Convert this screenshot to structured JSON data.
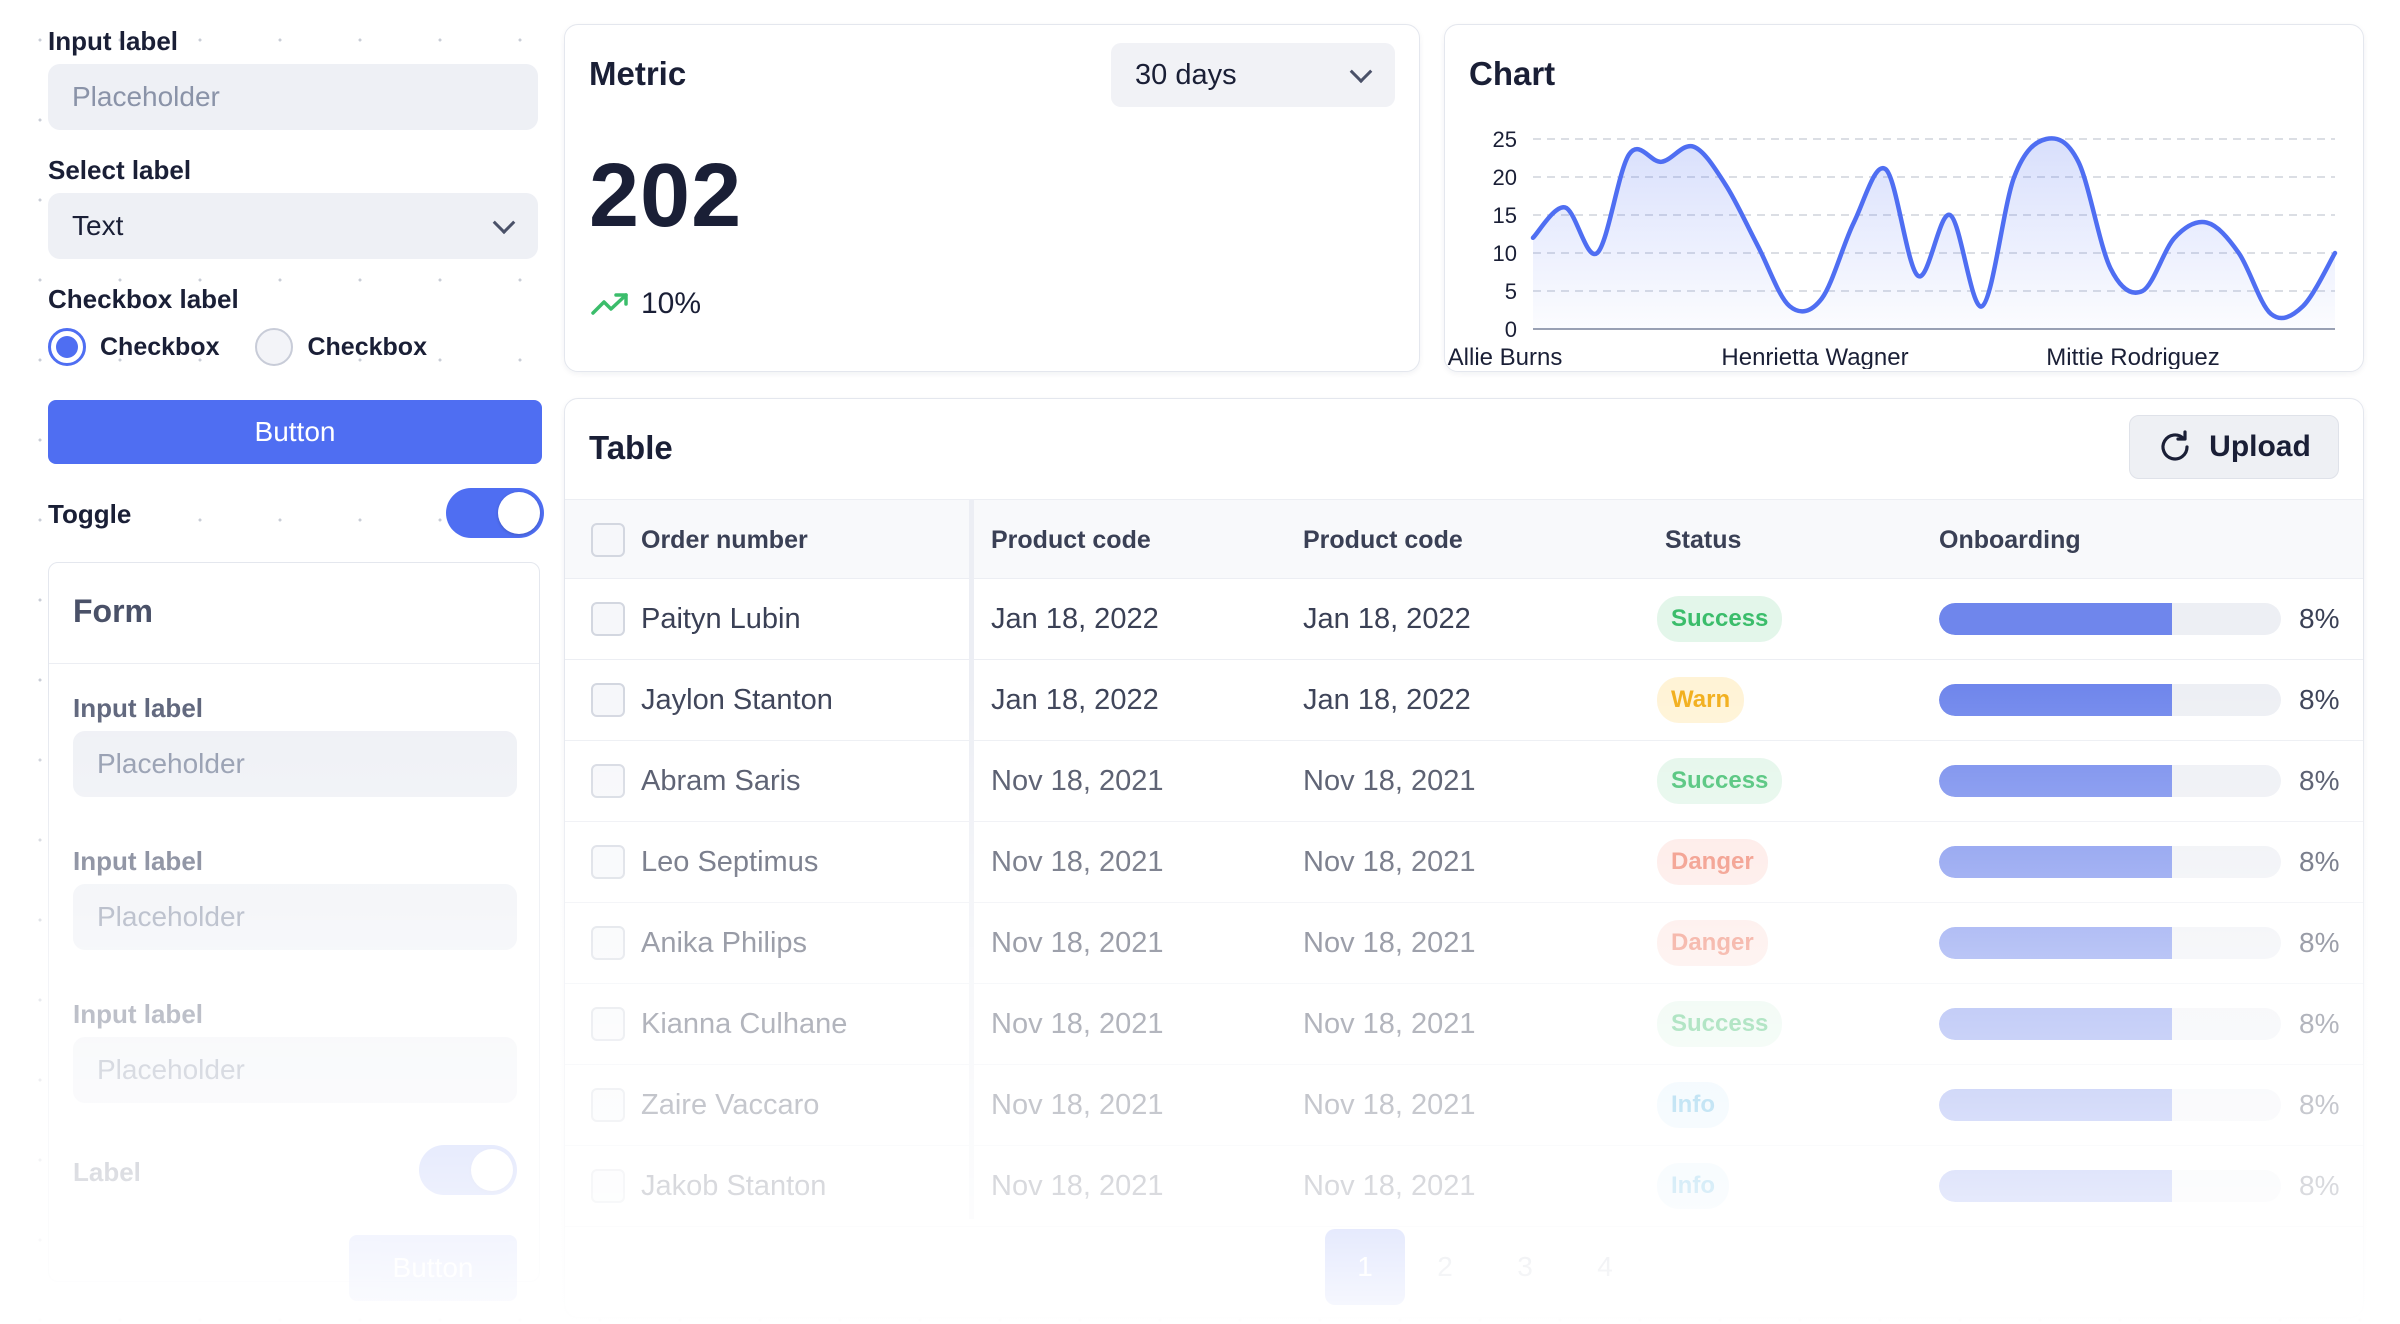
{
  "left": {
    "input_label": "Input label",
    "input_placeholder": "Placeholder",
    "select_label": "Select label",
    "select_value": "Text",
    "checkbox_label": "Checkbox label",
    "checkboxes": [
      {
        "label": "Checkbox",
        "checked": true
      },
      {
        "label": "Checkbox",
        "checked": false
      }
    ],
    "button_label": "Button",
    "toggle_label": "Toggle",
    "toggle_on": true
  },
  "form": {
    "title": "Form",
    "fields": [
      {
        "label": "Input label",
        "placeholder": "Placeholder"
      },
      {
        "label": "Input label",
        "placeholder": "Placeholder"
      },
      {
        "label": "Input label",
        "placeholder": "Placeholder"
      }
    ],
    "toggle_label": "Label",
    "toggle_on": true,
    "submit_label": "Button"
  },
  "metric": {
    "title": "Metric",
    "period": "30 days",
    "value": "202",
    "change": "10%",
    "trend_icon": "trending-up-icon",
    "trend_color": "#3bbd6b"
  },
  "chart_data": {
    "type": "area",
    "title": "Chart",
    "x_labels": [
      "Allie Burns",
      "Henrietta Wagner",
      "Mittie Rodriguez"
    ],
    "x": [
      0,
      0.04,
      0.08,
      0.12,
      0.16,
      0.2,
      0.24,
      0.28,
      0.32,
      0.36,
      0.4,
      0.44,
      0.48,
      0.52,
      0.56,
      0.6,
      0.64,
      0.68,
      0.72,
      0.76,
      0.8,
      0.84,
      0.88,
      0.92,
      0.96,
      1
    ],
    "values": [
      12,
      16,
      10,
      23,
      22,
      24,
      19,
      11,
      3,
      4,
      14,
      21,
      7,
      15,
      3,
      20,
      25,
      22,
      8,
      5,
      12,
      14,
      10,
      2,
      3,
      10
    ],
    "ylim": [
      0,
      25
    ],
    "yticks": [
      0,
      5,
      10,
      15,
      20,
      25
    ],
    "grid": true,
    "line_color": "#4f6ef2"
  },
  "table": {
    "title": "Table",
    "upload_label": "Upload",
    "columns": [
      "Order number",
      "Product code",
      "Product code",
      "Status",
      "Onboarding"
    ],
    "rows": [
      {
        "name": "Paityn Lubin",
        "code1": "Jan 18, 2022",
        "code2": "Jan 18, 2022",
        "status": "Success",
        "progress": 0.68,
        "pct": "8%"
      },
      {
        "name": "Jaylon Stanton",
        "code1": "Jan 18, 2022",
        "code2": "Jan 18, 2022",
        "status": "Warn",
        "progress": 0.68,
        "pct": "8%"
      },
      {
        "name": "Abram Saris",
        "code1": "Nov 18, 2021",
        "code2": "Nov 18, 2021",
        "status": "Success",
        "progress": 0.68,
        "pct": "8%"
      },
      {
        "name": "Leo Septimus",
        "code1": "Nov 18, 2021",
        "code2": "Nov 18, 2021",
        "status": "Danger",
        "progress": 0.68,
        "pct": "8%"
      },
      {
        "name": "Anika Philips",
        "code1": "Nov 18, 2021",
        "code2": "Nov 18, 2021",
        "status": "Danger",
        "progress": 0.68,
        "pct": "8%"
      },
      {
        "name": "Kianna Culhane",
        "code1": "Nov 18, 2021",
        "code2": "Nov 18, 2021",
        "status": "Success",
        "progress": 0.68,
        "pct": "8%"
      },
      {
        "name": "Zaire Vaccaro",
        "code1": "Nov 18, 2021",
        "code2": "Nov 18, 2021",
        "status": "Info",
        "progress": 0.68,
        "pct": "8%"
      },
      {
        "name": "Jakob Stanton",
        "code1": "Nov 18, 2021",
        "code2": "Nov 18, 2021",
        "status": "Info",
        "progress": 0.68,
        "pct": "8%"
      }
    ],
    "pages": [
      "1",
      "2",
      "3",
      "4"
    ],
    "active_page": "1"
  },
  "colors": {
    "primary": "#4f6ef2",
    "success": "#3bbd6b",
    "warn": "#f2ae1b",
    "danger": "#ee7a63",
    "info": "#39a7dc"
  }
}
